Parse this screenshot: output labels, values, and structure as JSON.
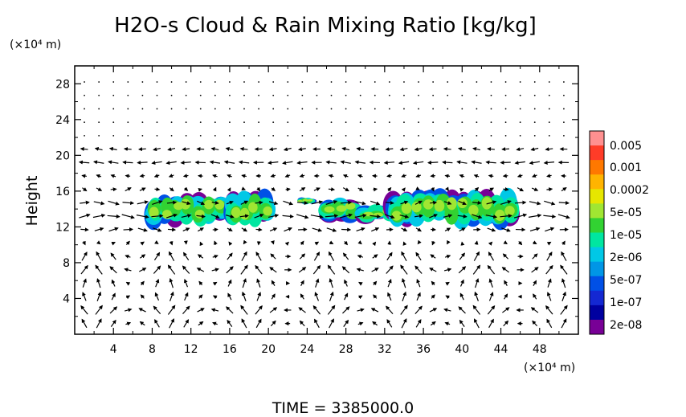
{
  "chart_data": {
    "type": "heatmap",
    "title": "H2O-s Cloud & Rain Mixing Ratio [kg/kg]",
    "ylabel": "Height",
    "y_unit": "(×10⁴ m)",
    "x_unit": "(×10⁴ m)",
    "xlim": [
      0,
      52
    ],
    "ylim": [
      0,
      30
    ],
    "x_ticks": [
      "4",
      "8",
      "12",
      "16",
      "20",
      "24",
      "28",
      "32",
      "36",
      "40",
      "44",
      "48"
    ],
    "y_ticks": [
      "4",
      "8",
      "12",
      "16",
      "20",
      "24",
      "28"
    ],
    "footer": "TIME = 3385000.0",
    "colorbar": {
      "labels": [
        "0.005",
        "0.001",
        "0.0002",
        "5e-05",
        "1e-05",
        "2e-06",
        "5e-07",
        "1e-07",
        "2e-08"
      ],
      "colors": [
        "#ff9090",
        "#ff3c28",
        "#ff7800",
        "#ffb400",
        "#e6e600",
        "#a0e632",
        "#32d232",
        "#00e6a0",
        "#00c8e6",
        "#0096e6",
        "#0050e6",
        "#1428d2",
        "#0000a0",
        "#780096"
      ]
    },
    "cloud_regions": [
      {
        "x": [
          7.8,
          15.5
        ],
        "y": [
          12.0,
          15.8
        ]
      },
      {
        "x": [
          16.0,
          20.2
        ],
        "y": [
          12.0,
          16.0
        ]
      },
      {
        "x": [
          23.3,
          24.5
        ],
        "y": [
          14.5,
          15.3
        ]
      },
      {
        "x": [
          25.5,
          29.2
        ],
        "y": [
          12.5,
          15.3
        ]
      },
      {
        "x": [
          29.5,
          33.0
        ],
        "y": [
          12.5,
          14.5
        ]
      },
      {
        "x": [
          32.5,
          45.5
        ],
        "y": [
          11.8,
          16.2
        ]
      }
    ],
    "wind_vectors": "streamfield"
  }
}
